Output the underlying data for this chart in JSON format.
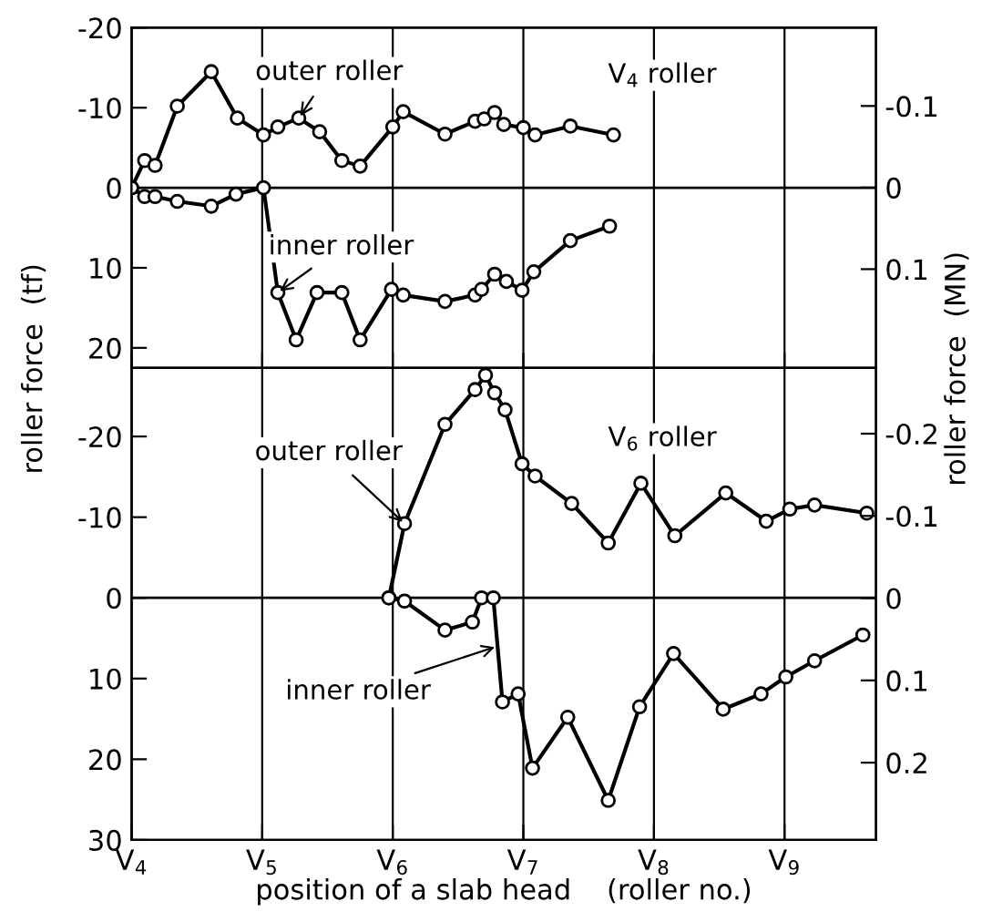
{
  "chart_data": [
    {
      "type": "line",
      "marker": "circle",
      "grid": "x",
      "tick_labels": "y",
      "legend": false,
      "xlim": [
        4,
        9.7
      ],
      "xticks": [
        {
          "value": 4,
          "label": null
        },
        {
          "value": 5,
          "label": null
        },
        {
          "value": 6,
          "label": null
        },
        {
          "value": 7,
          "label": null
        },
        {
          "value": 8,
          "label": null
        },
        {
          "value": 9,
          "label": null
        }
      ],
      "ylim": [
        22.5,
        -20
      ],
      "yticks": [
        -20,
        -10,
        0,
        10,
        20
      ],
      "y2lim": [
        0.221,
        -0.196
      ],
      "y2ticks": [
        -0.1,
        0,
        0.1
      ],
      "ref_lines": [
        {
          "axis": "y",
          "value": 0,
          "label": null
        }
      ],
      "series": [
        {
          "color": "#000000",
          "x": [
            4.0,
            4.1,
            4.18,
            4.35,
            4.61,
            4.81,
            5.01,
            5.12,
            5.28,
            5.44,
            5.61,
            5.75,
            6.0,
            6.08,
            6.4,
            6.63,
            6.7,
            6.78,
            6.85,
            7.0,
            7.09,
            7.36,
            7.69
          ],
          "values": [
            0,
            -3.4,
            -2.8,
            -10.2,
            -14.5,
            -8.7,
            -6.6,
            -7.6,
            -8.7,
            -7.0,
            -3.4,
            -2.7,
            -7.6,
            -9.5,
            -6.7,
            -8.3,
            -8.6,
            -9.4,
            -7.9,
            -7.5,
            -6.6,
            -7.7,
            -6.6
          ]
        },
        {
          "color": "#000000",
          "x": [
            4.0,
            4.1,
            4.18,
            4.35,
            4.61,
            4.8,
            5.01,
            5.12,
            5.26,
            5.42,
            5.61,
            5.75,
            5.99,
            6.08,
            6.4,
            6.63,
            6.68,
            6.78,
            6.87,
            6.99,
            7.08,
            7.36,
            7.66
          ],
          "values": [
            0,
            1.1,
            1.1,
            1.7,
            2.3,
            0.8,
            0,
            13.1,
            19.0,
            13.1,
            13.1,
            19.0,
            12.7,
            13.4,
            14.2,
            13.4,
            12.7,
            10.8,
            11.7,
            12.8,
            10.5,
            6.6,
            4.8
          ]
        }
      ],
      "annotations": [
        {
          "text": "outer roller",
          "x": 5.28,
          "y": -8.7
        },
        {
          "text": "inner roller",
          "x": 5.12,
          "y": 13.1
        },
        "V$_{4}$ roller"
      ]
    },
    {
      "type": "line",
      "marker": "circle",
      "grid": "x",
      "legend": false,
      "xlim": [
        4,
        9.7
      ],
      "xticks": [
        {
          "value": 4,
          "label": "V$_{4}$"
        },
        {
          "value": 5,
          "label": "V$_{5}$"
        },
        {
          "value": 6,
          "label": "V$_{6}$"
        },
        {
          "value": 7,
          "label": "V$_{7}$"
        },
        {
          "value": 8,
          "label": "V$_{8}$"
        },
        {
          "value": 9,
          "label": "V$_{9}$"
        }
      ],
      "ylim": [
        30,
        -28.5
      ],
      "yticks": [
        -20,
        -10,
        0,
        10,
        20,
        30
      ],
      "y2lim": [
        0.294,
        -0.28
      ],
      "y2ticks": [
        -0.2,
        -0.1,
        0,
        0.1,
        0.2
      ],
      "xlabel": "position of a slab head    (roller no.)",
      "ylabel": "roller force  (tf)",
      "y2label": "roller force  (MN)",
      "ref_lines": [
        {
          "axis": "y",
          "value": 0,
          "label": null
        }
      ],
      "series": [
        {
          "color": "#000000",
          "x": [
            5.97,
            6.09,
            6.4,
            6.63,
            6.71,
            6.78,
            6.86,
            6.99,
            7.09,
            7.37,
            7.65,
            7.9,
            8.16,
            8.55,
            8.86,
            9.04,
            9.23,
            9.63
          ],
          "values": [
            0,
            -9.2,
            -21.5,
            -25.8,
            -27.6,
            -25.4,
            -23.3,
            -16.6,
            -15.1,
            -11.7,
            -6.8,
            -14.2,
            -7.7,
            -13.0,
            -9.5,
            -11.0,
            -11.5,
            -10.5
          ]
        },
        {
          "color": "#000000",
          "x": [
            5.97,
            6.09,
            6.4,
            6.61,
            6.68,
            6.77,
            6.84,
            6.96,
            7.07,
            7.34,
            7.65,
            7.89,
            8.15,
            8.53,
            8.82,
            9.01,
            9.23,
            9.6
          ],
          "values": [
            0,
            0.4,
            4.0,
            3.0,
            0,
            0,
            12.9,
            11.9,
            21.1,
            14.8,
            25.1,
            13.5,
            6.9,
            13.8,
            11.9,
            9.8,
            7.8,
            4.6
          ]
        }
      ],
      "annotations": [
        {
          "text": "outer roller",
          "x": 6.09,
          "y": -9.2
        },
        {
          "text": "inner roller",
          "x": 6.8,
          "y": 6
        },
        "V$_{6}$ roller"
      ]
    }
  ]
}
